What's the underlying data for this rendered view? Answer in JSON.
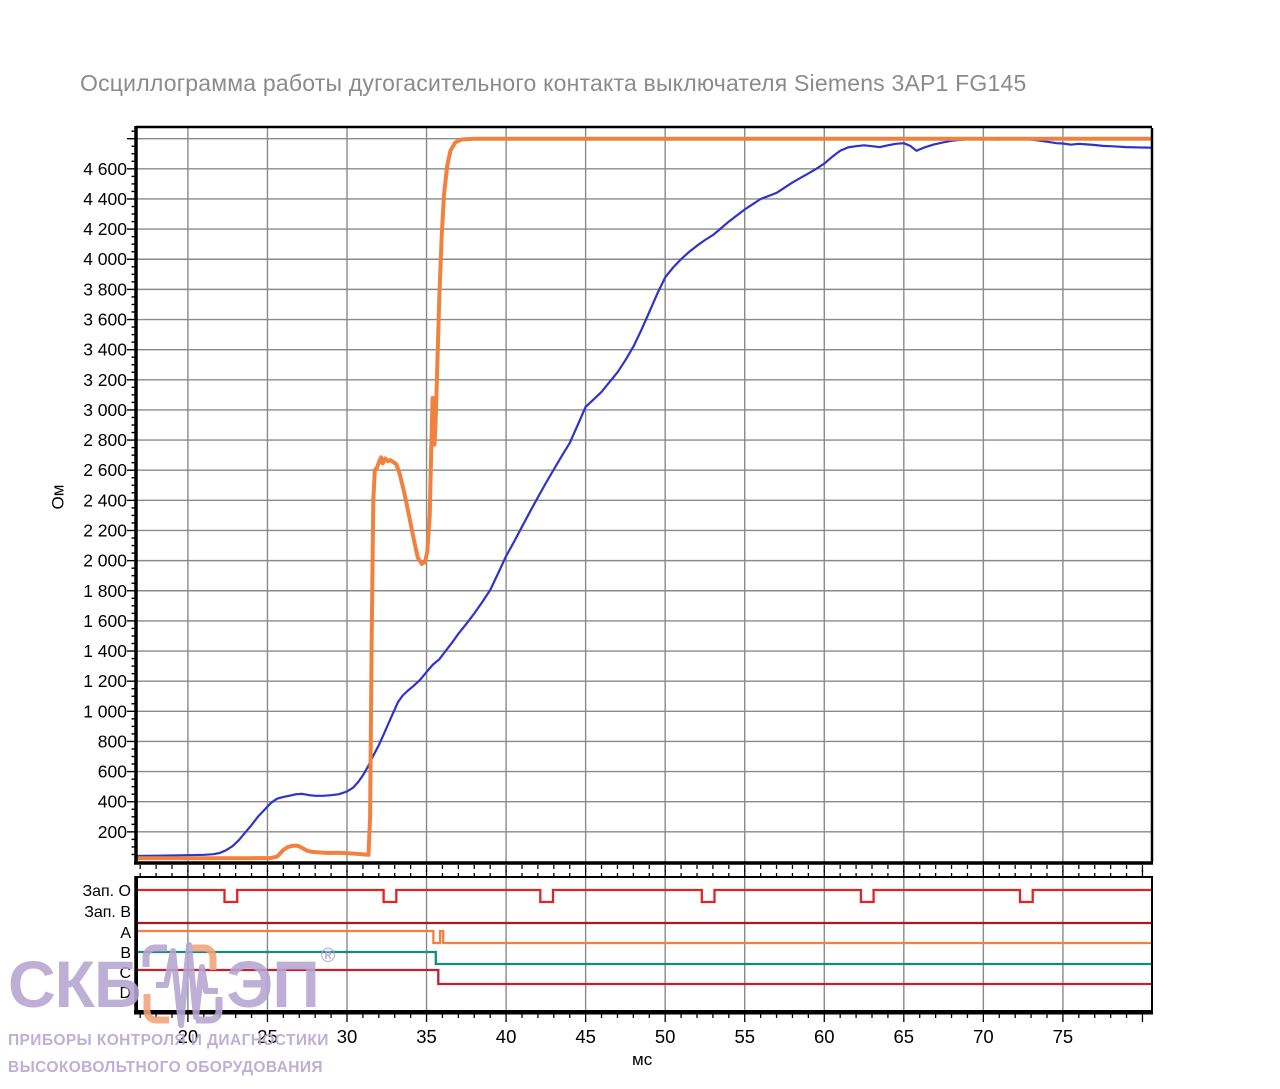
{
  "title": "Осциллограмма работы дугогасительного контакта выключателя Siemens 3AP1 FG145",
  "watermark": {
    "brand_left": "СКБ",
    "brand_right": "ЭП",
    "registered_mark": "®",
    "line1": "ПРИБОРЫ КОНТРОЛЯ И ДИАГНОСТИКИ",
    "line2": "ВЫСОКОВОЛЬТНОГО  ОБОРУДОВАНИЯ",
    "color": "#b5a5d1",
    "accent_orange": "#f2a279"
  },
  "chart_data": {
    "type": "line",
    "title": "Осциллограмма работы дугогасительного контакта выключателя Siemens 3AP1 FG145",
    "xlabel": "мс",
    "ylabel": "Ом",
    "grid": true,
    "grid_color": "#8a8a8a",
    "axis_color": "#000000",
    "x_axis": {
      "min": 16.8,
      "max": 80.6,
      "major_tick": 5,
      "minor_tick": 1,
      "labeled_ticks": [
        20,
        25,
        30,
        35,
        40,
        45,
        50,
        55,
        60,
        65,
        70,
        75
      ]
    },
    "y_axis": {
      "min": 0,
      "max": 4871,
      "grid_step": 200,
      "minor_tick": 50,
      "labeled_ticks": [
        200,
        400,
        600,
        800,
        1000,
        1200,
        1400,
        1600,
        1800,
        2000,
        2200,
        2400,
        2600,
        2800,
        3000,
        3200,
        3400,
        3600,
        3800,
        4000,
        4200,
        4400,
        4600
      ]
    },
    "series": [
      {
        "id": "blue_curve",
        "color": "#2e34c8",
        "width": 2.2,
        "points": [
          [
            16.8,
            40
          ],
          [
            18,
            42
          ],
          [
            19,
            43
          ],
          [
            20,
            45
          ],
          [
            21,
            48
          ],
          [
            21.6,
            52
          ],
          [
            22,
            60
          ],
          [
            22.4,
            78
          ],
          [
            22.8,
            105
          ],
          [
            23.2,
            145
          ],
          [
            23.6,
            195
          ],
          [
            24,
            245
          ],
          [
            24.4,
            300
          ],
          [
            24.8,
            345
          ],
          [
            25.2,
            390
          ],
          [
            25.6,
            420
          ],
          [
            26,
            432
          ],
          [
            26.4,
            440
          ],
          [
            26.8,
            450
          ],
          [
            27.2,
            452
          ],
          [
            27.6,
            444
          ],
          [
            28,
            439
          ],
          [
            28.5,
            439
          ],
          [
            29,
            443
          ],
          [
            29.5,
            450
          ],
          [
            30,
            468
          ],
          [
            30.4,
            495
          ],
          [
            30.7,
            530
          ],
          [
            31,
            575
          ],
          [
            31.3,
            630
          ],
          [
            31.6,
            695
          ],
          [
            32,
            775
          ],
          [
            32.4,
            870
          ],
          [
            32.8,
            965
          ],
          [
            33.2,
            1060
          ],
          [
            33.5,
            1105
          ],
          [
            33.8,
            1135
          ],
          [
            34.2,
            1170
          ],
          [
            34.6,
            1210
          ],
          [
            35,
            1260
          ],
          [
            35.4,
            1310
          ],
          [
            35.8,
            1345
          ],
          [
            36.2,
            1400
          ],
          [
            36.6,
            1455
          ],
          [
            37,
            1515
          ],
          [
            37.5,
            1580
          ],
          [
            38,
            1650
          ],
          [
            38.5,
            1725
          ],
          [
            39,
            1805
          ],
          [
            39.5,
            1915
          ],
          [
            40,
            2030
          ],
          [
            40.5,
            2125
          ],
          [
            41,
            2225
          ],
          [
            41.5,
            2325
          ],
          [
            42,
            2420
          ],
          [
            42.5,
            2515
          ],
          [
            43,
            2605
          ],
          [
            43.5,
            2695
          ],
          [
            44,
            2780
          ],
          [
            44.5,
            2900
          ],
          [
            45,
            3020
          ],
          [
            45.5,
            3070
          ],
          [
            46,
            3120
          ],
          [
            46.5,
            3185
          ],
          [
            47,
            3250
          ],
          [
            47.5,
            3330
          ],
          [
            48,
            3420
          ],
          [
            48.5,
            3530
          ],
          [
            49,
            3650
          ],
          [
            49.5,
            3770
          ],
          [
            50,
            3880
          ],
          [
            50.5,
            3945
          ],
          [
            51,
            4000
          ],
          [
            51.5,
            4048
          ],
          [
            52,
            4090
          ],
          [
            52.5,
            4128
          ],
          [
            53,
            4160
          ],
          [
            53.5,
            4205
          ],
          [
            54,
            4250
          ],
          [
            54.5,
            4290
          ],
          [
            55,
            4330
          ],
          [
            55.5,
            4365
          ],
          [
            56,
            4400
          ],
          [
            56.5,
            4420
          ],
          [
            57,
            4440
          ],
          [
            57.5,
            4475
          ],
          [
            58,
            4510
          ],
          [
            58.5,
            4540
          ],
          [
            59,
            4570
          ],
          [
            59.5,
            4600
          ],
          [
            60,
            4635
          ],
          [
            60.5,
            4680
          ],
          [
            61,
            4720
          ],
          [
            61.5,
            4742
          ],
          [
            62,
            4750
          ],
          [
            62.5,
            4756
          ],
          [
            63,
            4750
          ],
          [
            63.5,
            4744
          ],
          [
            64,
            4756
          ],
          [
            64.5,
            4766
          ],
          [
            65,
            4770
          ],
          [
            65.4,
            4752
          ],
          [
            65.8,
            4720
          ],
          [
            66.3,
            4742
          ],
          [
            66.9,
            4762
          ],
          [
            67.5,
            4776
          ],
          [
            68,
            4786
          ],
          [
            68.5,
            4792
          ],
          [
            69,
            4796
          ],
          [
            70,
            4799
          ],
          [
            71,
            4795
          ],
          [
            72,
            4799
          ],
          [
            73,
            4795
          ],
          [
            74,
            4780
          ],
          [
            74.6,
            4770
          ],
          [
            75,
            4768
          ],
          [
            75.5,
            4760
          ],
          [
            76,
            4766
          ],
          [
            76.5,
            4762
          ],
          [
            77,
            4758
          ],
          [
            77.5,
            4752
          ],
          [
            78,
            4750
          ],
          [
            79,
            4744
          ],
          [
            80.5,
            4740
          ]
        ]
      },
      {
        "id": "orange_curve",
        "color": "#f0813e",
        "width": 4,
        "points": [
          [
            16.8,
            25
          ],
          [
            20,
            25
          ],
          [
            24,
            25
          ],
          [
            25.2,
            26
          ],
          [
            25.6,
            35
          ],
          [
            26,
            80
          ],
          [
            26.3,
            100
          ],
          [
            26.6,
            108
          ],
          [
            26.9,
            108
          ],
          [
            27.2,
            92
          ],
          [
            27.5,
            75
          ],
          [
            27.8,
            67
          ],
          [
            28.2,
            64
          ],
          [
            28.8,
            60
          ],
          [
            29.4,
            62
          ],
          [
            30,
            58
          ],
          [
            30.6,
            55
          ],
          [
            31.1,
            50
          ],
          [
            31.35,
            48
          ],
          [
            31.45,
            300
          ],
          [
            31.55,
            1500
          ],
          [
            31.65,
            2400
          ],
          [
            31.75,
            2600
          ],
          [
            31.9,
            2620
          ],
          [
            32.05,
            2665
          ],
          [
            32.15,
            2685
          ],
          [
            32.25,
            2645
          ],
          [
            32.4,
            2678
          ],
          [
            32.55,
            2660
          ],
          [
            32.7,
            2668
          ],
          [
            32.9,
            2655
          ],
          [
            33.1,
            2640
          ],
          [
            33.3,
            2580
          ],
          [
            33.6,
            2450
          ],
          [
            33.9,
            2300
          ],
          [
            34.2,
            2140
          ],
          [
            34.45,
            2020
          ],
          [
            34.7,
            1978
          ],
          [
            34.9,
            1990
          ],
          [
            35.05,
            2060
          ],
          [
            35.2,
            2300
          ],
          [
            35.3,
            2750
          ],
          [
            35.38,
            3080
          ],
          [
            35.44,
            2900
          ],
          [
            35.5,
            2770
          ],
          [
            35.56,
            2900
          ],
          [
            35.65,
            3200
          ],
          [
            35.8,
            3750
          ],
          [
            35.95,
            4150
          ],
          [
            36.1,
            4430
          ],
          [
            36.3,
            4620
          ],
          [
            36.5,
            4720
          ],
          [
            36.8,
            4775
          ],
          [
            37.2,
            4795
          ],
          [
            38,
            4800
          ],
          [
            45,
            4800
          ],
          [
            55,
            4800
          ],
          [
            65,
            4800
          ],
          [
            75,
            4800
          ],
          [
            80.5,
            4800
          ]
        ]
      }
    ]
  },
  "timing_panel": {
    "rows": [
      {
        "label": "Зап. О",
        "color": "#e02424",
        "type": "pulses",
        "pulses_ms": [
          22.3,
          32.3,
          42.15,
          52.3,
          62.3,
          72.3
        ],
        "pulse_width_ms": 0.8
      },
      {
        "label": "Зап. В",
        "color": "#ad1822",
        "type": "constant"
      },
      {
        "label": "A",
        "color": "#f0813e",
        "type": "drop",
        "drop_ms": 35.43,
        "spike_ms": [
          35.85,
          36.05
        ]
      },
      {
        "label": "B",
        "color": "#158a84",
        "type": "drop",
        "drop_ms": 35.58
      },
      {
        "label": "C",
        "color": "#c52030",
        "type": "drop",
        "drop_ms": 35.74
      },
      {
        "label": "D",
        "color": "#000000",
        "type": "none"
      }
    ]
  }
}
